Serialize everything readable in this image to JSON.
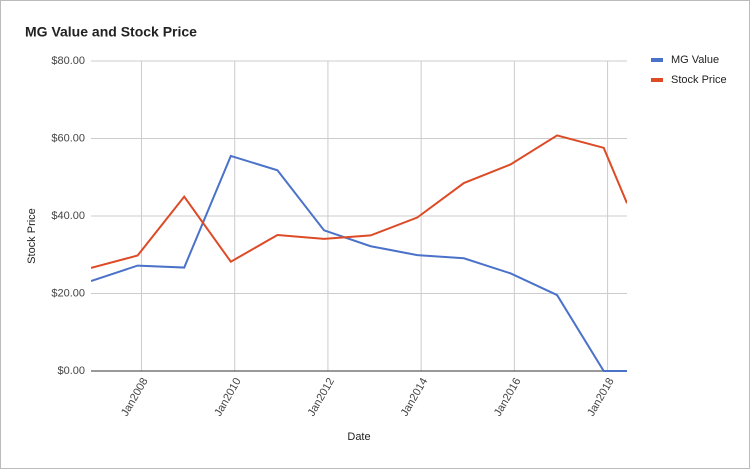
{
  "chart_data": {
    "type": "line",
    "title": "MG Value and Stock Price",
    "x_label": "Date",
    "y_label": "Stock Price",
    "x": [
      "2006-12",
      "2007-12",
      "2008-12",
      "2009-12",
      "2010-12",
      "2011-12",
      "2012-12",
      "2013-12",
      "2014-12",
      "2015-12",
      "2016-12",
      "2017-12",
      "2018-06"
    ],
    "series": [
      {
        "name": "MG Value",
        "color": "#4a72c9",
        "values": [
          23.2,
          27.2,
          26.7,
          55.5,
          51.8,
          36.3,
          32.2,
          29.9,
          29.1,
          25.2,
          19.6,
          0,
          0
        ]
      },
      {
        "name": "Stock Price",
        "color": "#dd4b26",
        "values": [
          26.6,
          29.8,
          45.0,
          28.2,
          35.1,
          34.1,
          35.0,
          39.6,
          48.5,
          53.3,
          60.8,
          57.6,
          43.3
        ]
      }
    ],
    "xlim": [
      "2006-12",
      "2018-06"
    ],
    "xticks": [
      {
        "value": "2008-01",
        "label": "Jan2008"
      },
      {
        "value": "2010-01",
        "label": "Jan2010"
      },
      {
        "value": "2012-01",
        "label": "Jan2012"
      },
      {
        "value": "2014-01",
        "label": "Jan2014"
      },
      {
        "value": "2016-01",
        "label": "Jan2016"
      },
      {
        "value": "2018-01",
        "label": "Jan2018"
      }
    ],
    "ylim": [
      0,
      80
    ],
    "yticks": [
      {
        "value": 0,
        "label": "$0.00"
      },
      {
        "value": 20,
        "label": "$20.00"
      },
      {
        "value": 40,
        "label": "$40.00"
      },
      {
        "value": 60,
        "label": "$60.00"
      },
      {
        "value": 80,
        "label": "$80.00"
      }
    ],
    "grid": true,
    "legend": "right"
  }
}
